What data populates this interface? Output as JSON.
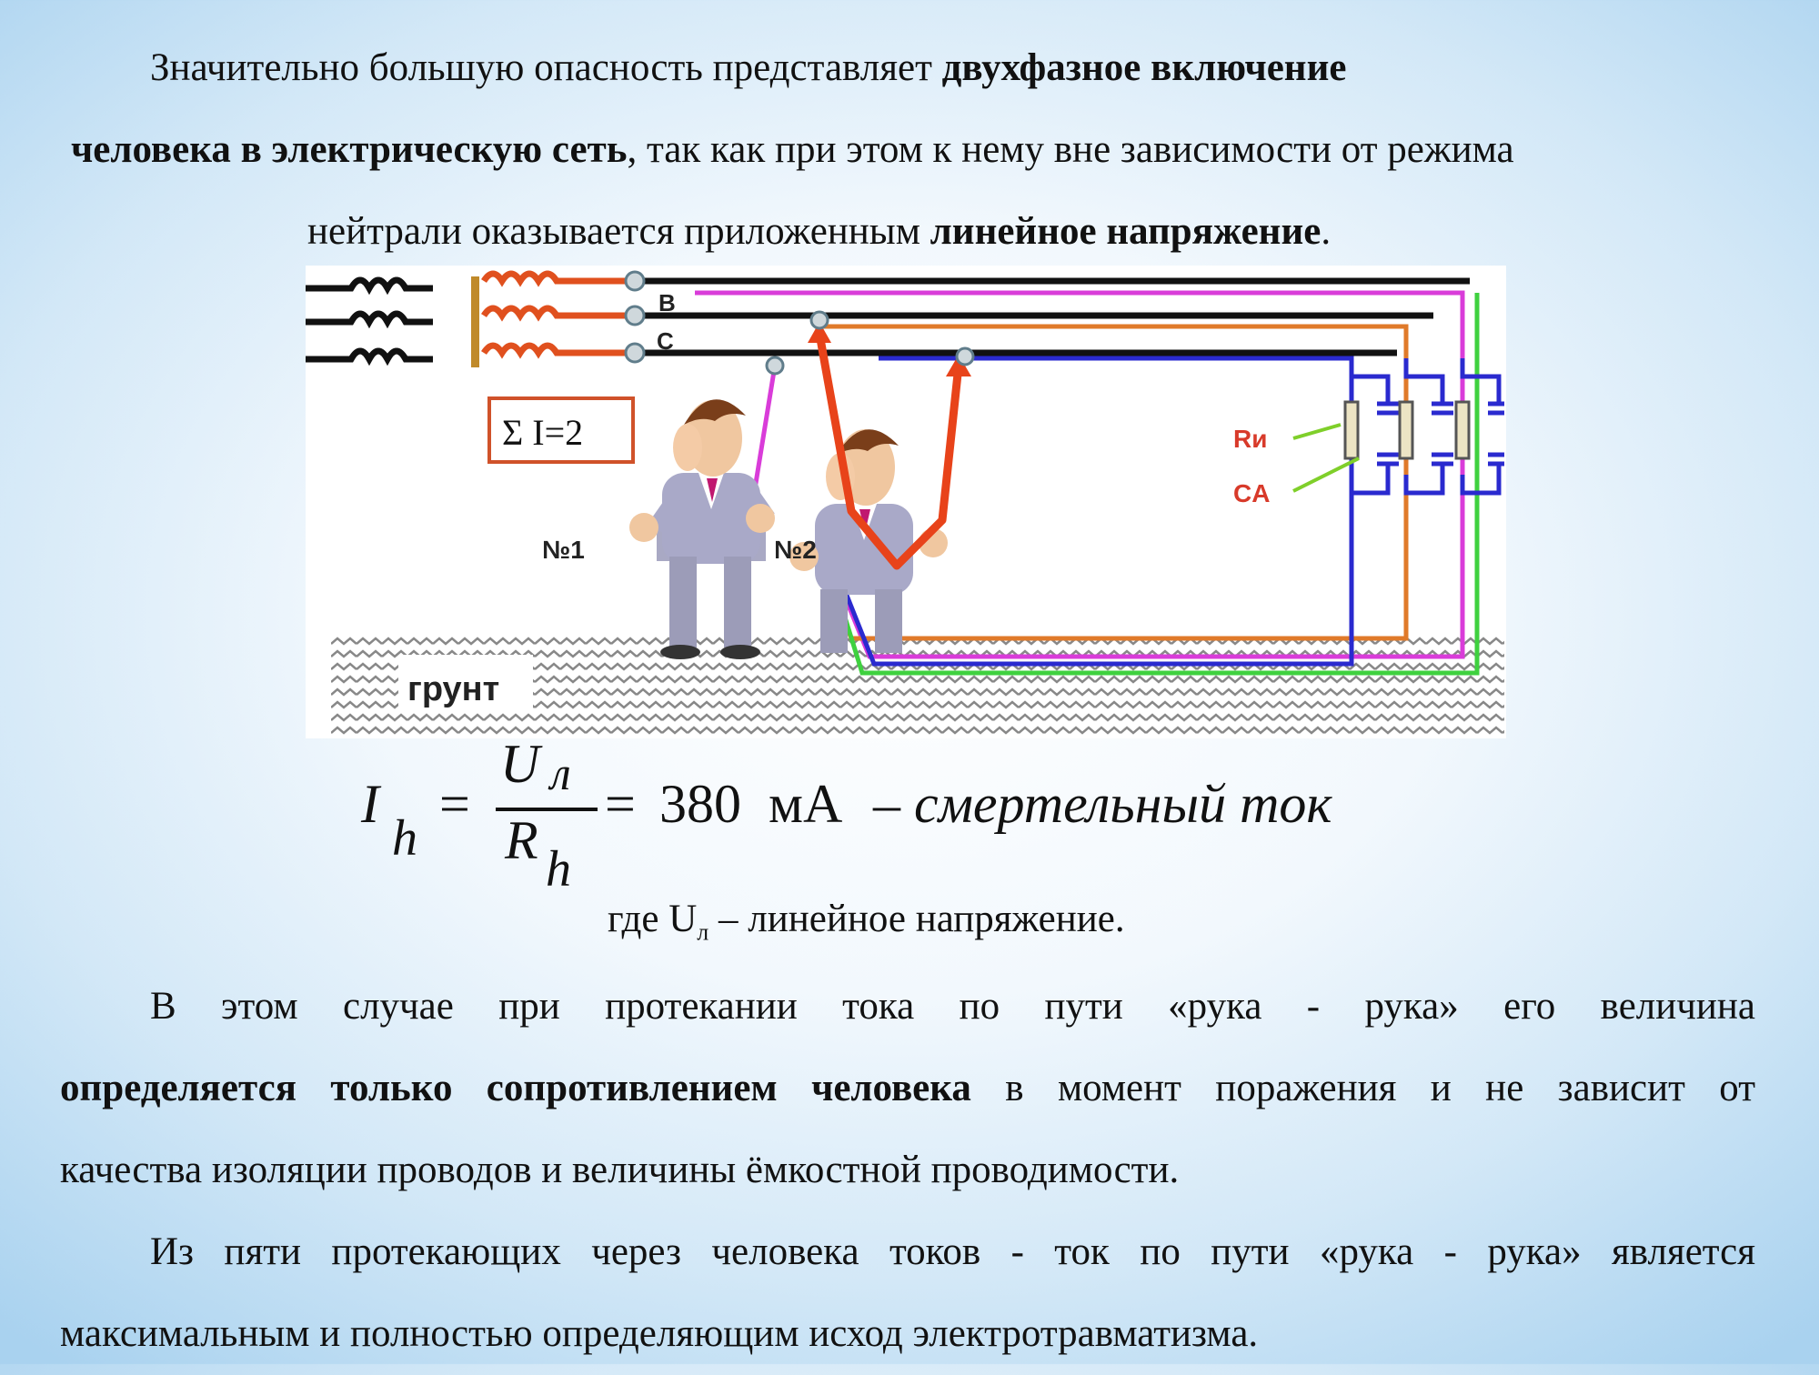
{
  "para1": {
    "l1_a": "Значительно большую опасность представляет ",
    "l1_b": "двухфазное включение",
    "l2_a": "человека в электрическую сеть",
    "l2_b": ", так как при этом к нему вне зависимости от режима",
    "l3_a": "нейтрали оказывается приложенным ",
    "l3_b": "линейное напряжение",
    "l3_c": "."
  },
  "diagram": {
    "sum_label": "Σ I=2",
    "phase_b": "B",
    "phase_c": "C",
    "person1": "№1",
    "person2": "№2",
    "r_label": "Rи",
    "c_label": "CА",
    "ground": "грунт"
  },
  "formula": {
    "lhs": "I",
    "lhs_sub": "h",
    "eq1": "=",
    "num": "U",
    "num_sub": "л",
    "den": "R",
    "den_sub": "h",
    "eq2": "=",
    "value": "380",
    "unit": "мА",
    "dash": "–",
    "desc": "смертельный ток"
  },
  "where": {
    "a": "где U",
    "sub": "л",
    "b": " – линейное напряжение."
  },
  "para2": {
    "l1": "В этом случае при протекании тока по пути «рука - рука» его величина",
    "l2_a": "определяется только сопротивлением человека",
    "l2_b": " в момент поражения и не зависит от",
    "l3": "качества изоляции проводов и величины ёмкостной проводимости."
  },
  "para3": {
    "l1": "Из пяти протекающих через человека токов - ток по пути «рука - рука» является",
    "l2": "максимальным и полностью определяющим исход электротравматизма."
  }
}
